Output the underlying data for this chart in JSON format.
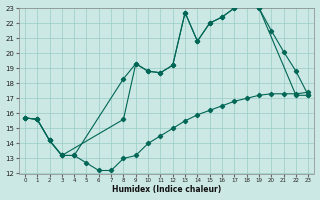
{
  "xlabel": "Humidex (Indice chaleur)",
  "bg_color": "#cce8e4",
  "grid_color": "#99ccc6",
  "line_color": "#006655",
  "xlim": [
    -0.5,
    23.5
  ],
  "ylim": [
    12,
    23
  ],
  "xticks": [
    0,
    1,
    2,
    3,
    4,
    5,
    6,
    7,
    8,
    9,
    10,
    11,
    12,
    13,
    14,
    15,
    16,
    17,
    18,
    19,
    20,
    21,
    22,
    23
  ],
  "yticks": [
    12,
    13,
    14,
    15,
    16,
    17,
    18,
    19,
    20,
    21,
    22,
    23
  ],
  "line1_x": [
    0,
    1,
    2,
    3,
    8,
    9,
    10,
    11,
    12,
    13,
    14,
    15,
    16,
    17,
    18,
    19,
    20,
    21,
    22,
    23
  ],
  "line1_y": [
    15.7,
    15.6,
    14.2,
    13.2,
    15.6,
    19.3,
    18.8,
    18.7,
    19.2,
    22.7,
    20.8,
    22.0,
    22.4,
    23.0,
    23.3,
    23.0,
    21.5,
    20.1,
    18.8,
    17.2
  ],
  "line2_x": [
    0,
    1,
    2,
    3,
    4,
    8,
    9,
    10,
    11,
    12,
    13,
    14,
    15,
    16,
    17,
    18,
    19,
    22,
    23
  ],
  "line2_y": [
    15.7,
    15.6,
    14.2,
    13.2,
    13.2,
    18.3,
    19.3,
    18.8,
    18.7,
    19.2,
    22.7,
    20.8,
    22.0,
    22.4,
    23.0,
    23.3,
    23.0,
    17.2,
    17.2
  ],
  "line3_x": [
    0,
    1,
    2,
    3,
    4,
    5,
    6,
    7,
    8,
    9,
    10,
    11,
    12,
    13,
    14,
    15,
    16,
    17,
    18,
    19,
    20,
    21,
    22,
    23
  ],
  "line3_y": [
    15.7,
    15.6,
    14.2,
    13.2,
    13.2,
    12.7,
    12.2,
    12.2,
    13.0,
    13.2,
    14.0,
    14.5,
    15.0,
    15.5,
    15.9,
    16.2,
    16.5,
    16.8,
    17.0,
    17.2,
    17.3,
    17.3,
    17.3,
    17.4
  ]
}
